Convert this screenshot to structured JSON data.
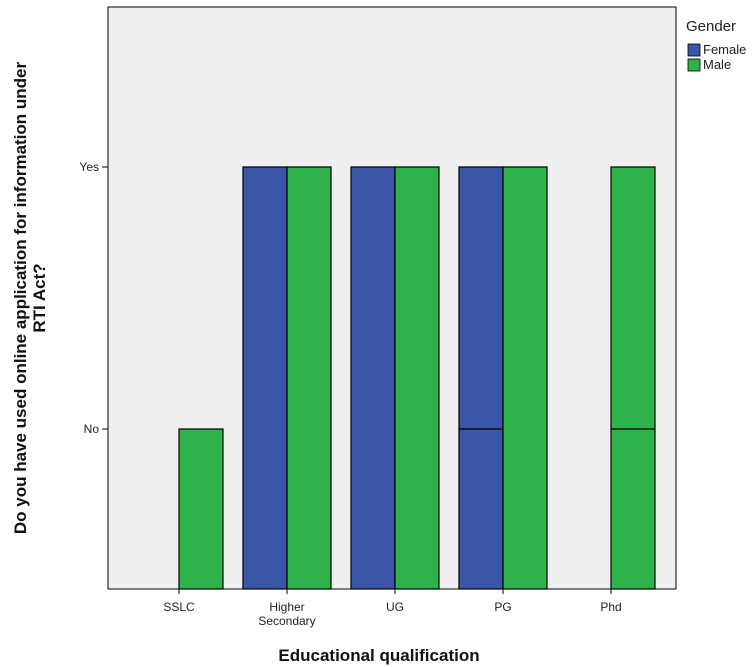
{
  "chart_data": {
    "type": "bar",
    "xlabel": "Educational qualification",
    "ylabel": "Do you have used online application for information under RTI Act?",
    "categories": [
      {
        "label": [
          "SSLC"
        ]
      },
      {
        "label": [
          "Higher",
          "Secondary"
        ]
      },
      {
        "label": [
          "UG"
        ]
      },
      {
        "label": [
          "PG"
        ]
      },
      {
        "label": [
          "Phd"
        ]
      }
    ],
    "y_levels": [
      "No",
      "Yes"
    ],
    "legend": {
      "title": "Gender",
      "placement": "top-right"
    },
    "series": [
      {
        "name": "Female",
        "color": "#3b56a8",
        "values": [
          null,
          "Yes",
          "Yes",
          "Yes",
          null
        ],
        "divider_at": [
          null,
          null,
          null,
          "No",
          null
        ]
      },
      {
        "name": "Male",
        "color": "#2eb34a",
        "values": [
          "No",
          "Yes",
          "Yes",
          "Yes",
          "Yes"
        ],
        "divider_at": [
          null,
          null,
          null,
          null,
          "No"
        ]
      }
    ],
    "plot_background": "#efefef",
    "grid": false
  }
}
